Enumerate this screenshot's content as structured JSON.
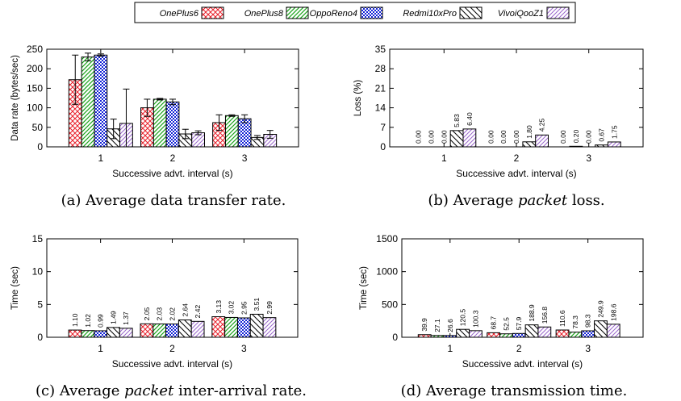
{
  "legend": {
    "series": [
      {
        "name": "OnePlus6",
        "pattern": "crosshatch",
        "color": "#e8202a"
      },
      {
        "name": "OnePlus8",
        "pattern": "diagonal",
        "color": "#1aa31a"
      },
      {
        "name": "OppoReno4",
        "pattern": "checker",
        "color": "#1524d6"
      },
      {
        "name": "Redmi10xPro",
        "pattern": "diagonal-back",
        "color": "#000000"
      },
      {
        "name": "VivoiQooZ1",
        "pattern": "diagonal",
        "color": "#9966cc"
      }
    ]
  },
  "chart_data": [
    {
      "id": "a",
      "type": "bar",
      "caption": "(a) Average data transfer rate.",
      "xlabel": "Successive advt. interval (s)",
      "ylabel": "Data rate (bytes/sec)",
      "categories": [
        "1",
        "2",
        "3"
      ],
      "ylim": [
        0,
        250
      ],
      "yticks": [
        "0",
        "50",
        "100",
        "150",
        "200",
        "250"
      ],
      "yticks_values": [
        0,
        50,
        100,
        150,
        200,
        250
      ],
      "value_labels": false,
      "error_bars": true,
      "series": [
        {
          "values": [
            172,
            100,
            62
          ],
          "errors": [
            63,
            22,
            20
          ]
        },
        {
          "values": [
            230,
            122,
            80
          ],
          "errors": [
            10,
            2,
            2
          ]
        },
        {
          "values": [
            235,
            115,
            72
          ],
          "errors": [
            3,
            7,
            10
          ]
        },
        {
          "values": [
            46,
            33,
            24
          ],
          "errors": [
            25,
            12,
            5
          ]
        },
        {
          "values": [
            60,
            36,
            32
          ],
          "errors": [
            88,
            5,
            10
          ]
        }
      ]
    },
    {
      "id": "b",
      "type": "bar",
      "caption_parts": [
        "(b) Average ",
        "packet",
        " loss."
      ],
      "xlabel": "Successive advt. interval (s)",
      "ylabel": "Loss (%)",
      "categories": [
        "1",
        "2",
        "3"
      ],
      "ylim": [
        0,
        35
      ],
      "yticks": [
        "0",
        "7",
        "14",
        "21",
        "28",
        "35"
      ],
      "yticks_values": [
        0,
        7,
        14,
        21,
        28,
        35
      ],
      "value_labels": true,
      "error_bars": false,
      "series": [
        {
          "values": [
            0.0,
            0.0,
            0.0
          ],
          "labels": [
            "0.00",
            "0.00",
            "0.00"
          ]
        },
        {
          "values": [
            0.0,
            0.0,
            0.2
          ],
          "labels": [
            "0.00",
            "0.00",
            "0.20"
          ]
        },
        {
          "values": [
            0.0,
            0.0,
            0.0
          ],
          "labels": [
            "0.00",
            "0.00",
            "0.00"
          ]
        },
        {
          "values": [
            5.83,
            1.8,
            0.67
          ],
          "labels": [
            "5.83",
            "1.80",
            "0.67"
          ]
        },
        {
          "values": [
            6.4,
            4.25,
            1.75
          ],
          "labels": [
            "6.40",
            "4.25",
            "1.75"
          ]
        }
      ]
    },
    {
      "id": "c",
      "type": "bar",
      "caption_parts": [
        "(c) Average ",
        "packet",
        " inter-arrival rate."
      ],
      "xlabel": "Successive advt. interval (s)",
      "ylabel": "Time (sec)",
      "categories": [
        "1",
        "2",
        "3"
      ],
      "ylim": [
        0,
        15
      ],
      "yticks": [
        "0",
        "5",
        "10",
        "15"
      ],
      "yticks_values": [
        0,
        5,
        10,
        15
      ],
      "value_labels": true,
      "error_bars": false,
      "series": [
        {
          "values": [
            1.1,
            2.05,
            3.13
          ],
          "labels": [
            "1.10",
            "2.05",
            "3.13"
          ]
        },
        {
          "values": [
            1.02,
            2.03,
            3.02
          ],
          "labels": [
            "1.02",
            "2.03",
            "3.02"
          ]
        },
        {
          "values": [
            0.99,
            2.02,
            2.95
          ],
          "labels": [
            "0.99",
            "2.02",
            "2.95"
          ]
        },
        {
          "values": [
            1.49,
            2.64,
            3.51
          ],
          "labels": [
            "1.49",
            "2.64",
            "3.51"
          ]
        },
        {
          "values": [
            1.37,
            2.42,
            2.99
          ],
          "labels": [
            "1.37",
            "2.42",
            "2.99"
          ]
        }
      ]
    },
    {
      "id": "d",
      "type": "bar",
      "caption": "(d) Average transmission time.",
      "xlabel": "Successive advt. interval (s)",
      "ylabel": "Time (sec)",
      "categories": [
        "1",
        "2",
        "3"
      ],
      "ylim": [
        0,
        1500
      ],
      "yticks": [
        "0",
        "500",
        "1000",
        "1500"
      ],
      "yticks_values": [
        0,
        500,
        1000,
        1500
      ],
      "value_labels": true,
      "error_bars": false,
      "series": [
        {
          "values": [
            39.9,
            68.7,
            110.6
          ],
          "labels": [
            "39.9",
            "68.7",
            "110.6"
          ]
        },
        {
          "values": [
            27.1,
            52.5,
            78.3
          ],
          "labels": [
            "27.1",
            "52.5",
            "78.3"
          ]
        },
        {
          "values": [
            26.6,
            57.9,
            98.3
          ],
          "labels": [
            "26.6",
            "57.9",
            "98.3"
          ]
        },
        {
          "values": [
            120.5,
            188.9,
            249.9
          ],
          "labels": [
            "120.5",
            "188.9",
            "249.9"
          ]
        },
        {
          "values": [
            100.3,
            156.8,
            198.6
          ],
          "labels": [
            "100.3",
            "156.8",
            "198.6"
          ]
        }
      ]
    }
  ]
}
